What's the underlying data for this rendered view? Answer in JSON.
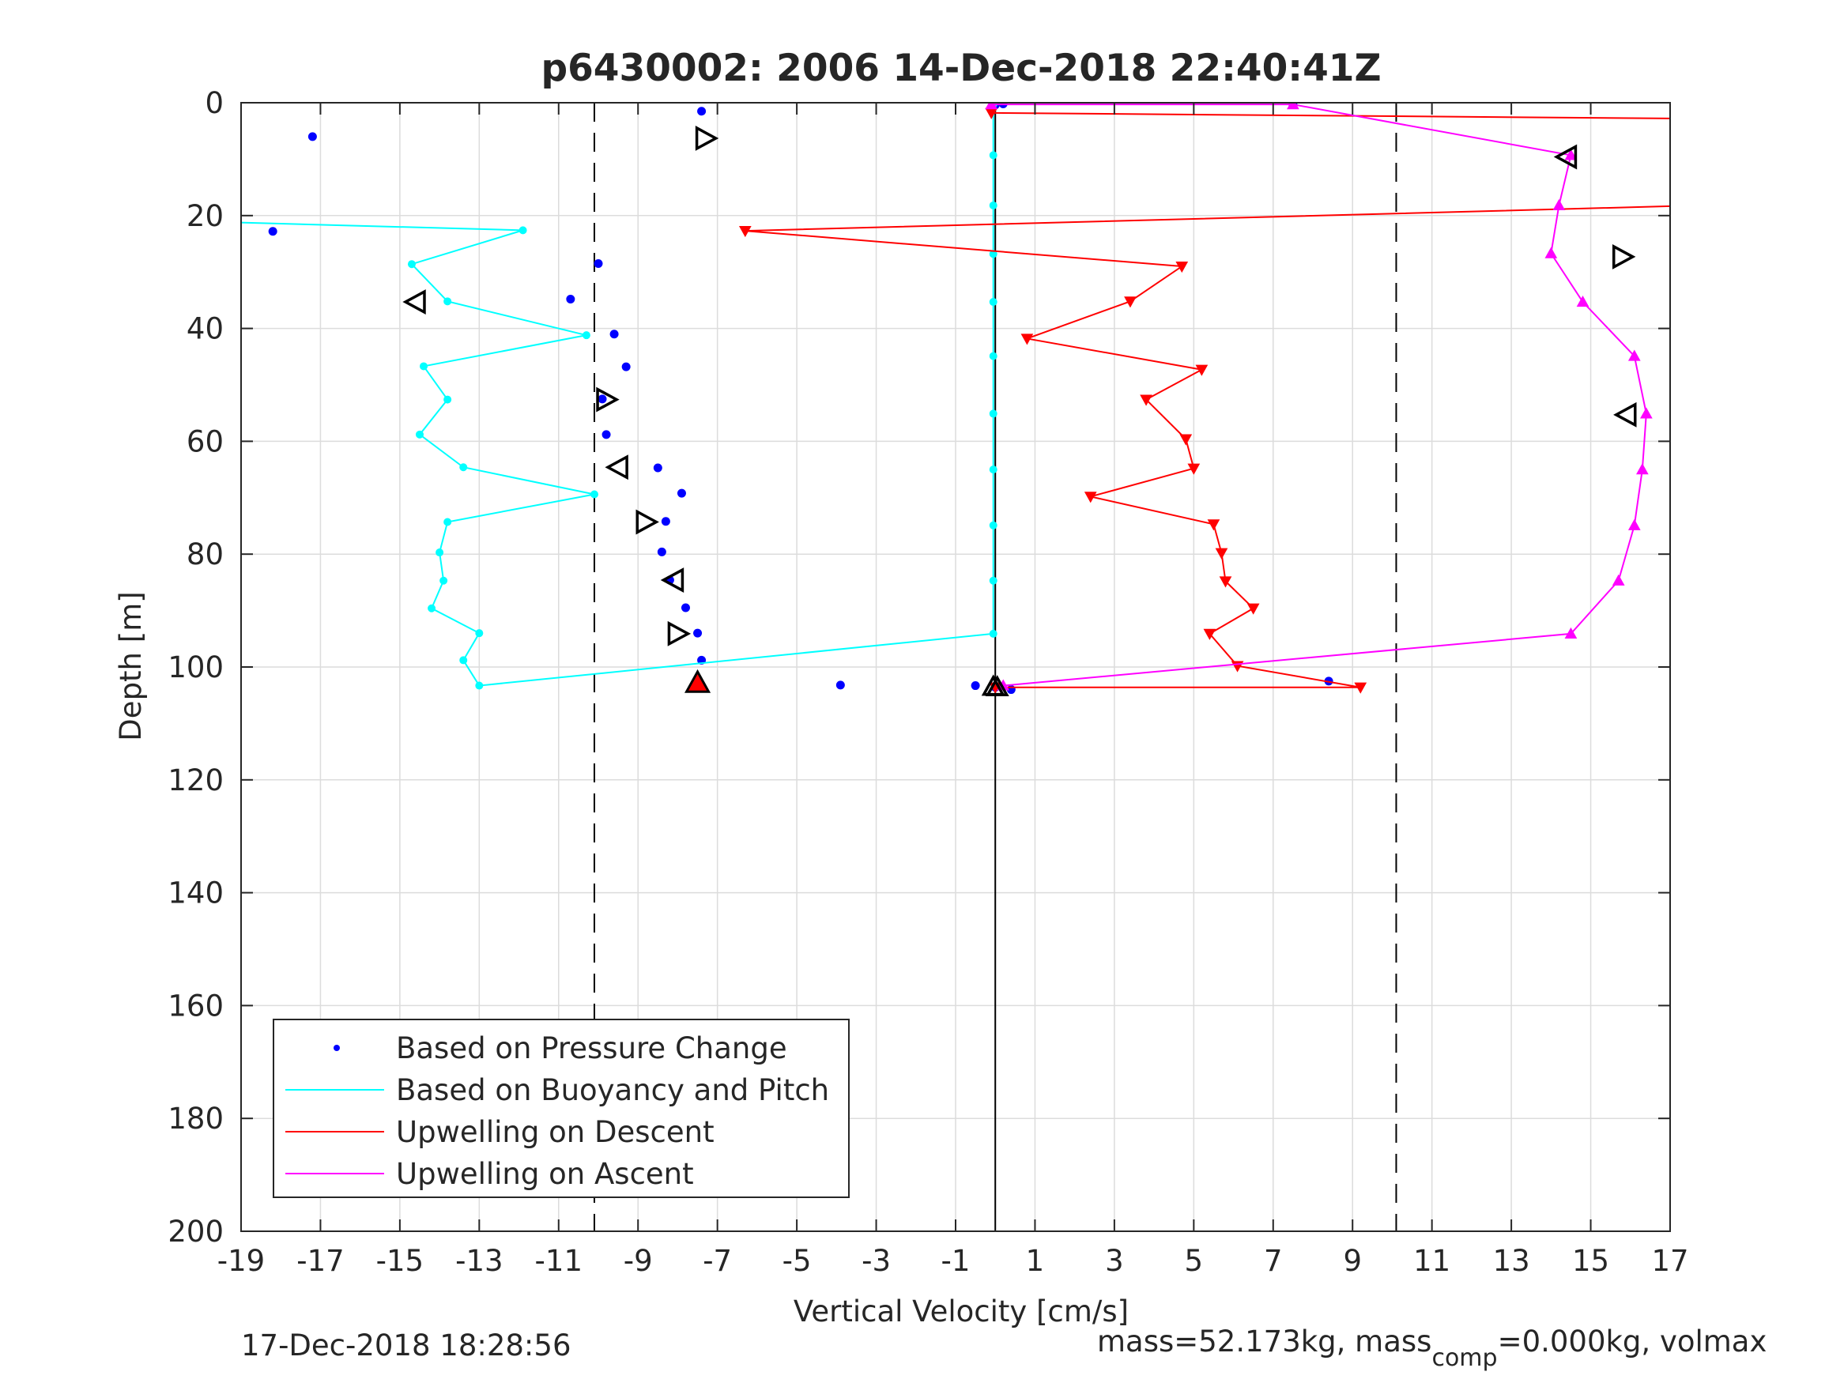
{
  "figure": {
    "title": "p6430002:  2006 14-Dec-2018 22:40:41Z",
    "footer_left": "17-Dec-2018 18:28:56",
    "footer_right_parts": [
      "mass=52.173kg, mass",
      "comp",
      "=0.000kg, volmax"
    ]
  },
  "chart_data": {
    "type": "scatter",
    "title": "p6430002:  2006 14-Dec-2018 22:40:41Z",
    "xlabel": "Vertical Velocity [cm/s]",
    "ylabel": "Depth [m]",
    "xlim": [
      -19,
      17
    ],
    "ylim": [
      0,
      200
    ],
    "y_reversed": true,
    "grid": true,
    "xticks": [
      -19,
      -17,
      -15,
      -13,
      -11,
      -9,
      -7,
      -5,
      -3,
      -1,
      1,
      3,
      5,
      7,
      9,
      11,
      13,
      15,
      17
    ],
    "xtick_labels": [
      "-19",
      "-17",
      "-15",
      "-13",
      "-11",
      "-9",
      "-7",
      "-5",
      "-3",
      "-1",
      "1",
      "3",
      "5",
      "7",
      "9",
      "11",
      "13",
      "15",
      "17"
    ],
    "yticks": [
      0,
      20,
      40,
      60,
      80,
      100,
      120,
      140,
      160,
      180,
      200
    ],
    "ytick_labels": [
      "0",
      "20",
      "40",
      "60",
      "80",
      "100",
      "120",
      "140",
      "160",
      "180",
      "200"
    ],
    "legend_position": "bottom-left",
    "legend": [
      {
        "label": "Based on Pressure Change",
        "color": "#0000ff",
        "style": "dot"
      },
      {
        "label": "Based on Buoyancy and Pitch",
        "color": "#00ffff",
        "style": "line"
      },
      {
        "label": "Upwelling on Descent",
        "color": "#ff0000",
        "style": "line"
      },
      {
        "label": "Upwelling on Ascent",
        "color": "#ff00ff",
        "style": "line"
      }
    ],
    "reference_lines": {
      "solid_vertical_x": 0,
      "dashed_vertical_x": [
        -10.1,
        10.1
      ]
    },
    "series": [
      {
        "name": "Based on Pressure Change",
        "color": "#0000ff",
        "marker": "dot",
        "points": [
          [
            -7.4,
            1.5
          ],
          [
            7.5,
            0.3
          ],
          [
            0.2,
            0.2
          ],
          [
            0,
            0.4
          ],
          [
            -17.2,
            6
          ],
          [
            -18.2,
            22.8
          ],
          [
            -10,
            28.5
          ],
          [
            -10.7,
            34.8
          ],
          [
            -9.6,
            41
          ],
          [
            -9.3,
            46.8
          ],
          [
            -9.9,
            52.5
          ],
          [
            -9.8,
            58.8
          ],
          [
            -8.5,
            64.7
          ],
          [
            -7.9,
            69.2
          ],
          [
            -8.3,
            74.2
          ],
          [
            -8.4,
            79.6
          ],
          [
            -8.2,
            84.6
          ],
          [
            -7.8,
            89.5
          ],
          [
            -7.5,
            94
          ],
          [
            -7.4,
            98.8
          ],
          [
            -3.9,
            103.2
          ],
          [
            -0.5,
            103.3
          ],
          [
            0.4,
            104
          ],
          [
            8.4,
            102.5
          ],
          [
            0,
            103.6
          ]
        ]
      },
      {
        "name": "Based on Buoyancy and Pitch",
        "color": "#00ffff",
        "marker": "circle",
        "points": [
          [
            -0.05,
            0.3
          ],
          [
            -0.05,
            9.3
          ],
          [
            -0.05,
            18.2
          ],
          [
            -0.05,
            26.8
          ],
          [
            -0.05,
            35.3
          ],
          [
            -0.05,
            44.9
          ],
          [
            -0.05,
            55.1
          ],
          [
            -0.05,
            65
          ],
          [
            -0.05,
            74.9
          ],
          [
            -0.05,
            84.7
          ],
          [
            -0.05,
            94.1
          ],
          [
            -13,
            103.3
          ],
          [
            -13.4,
            98.8
          ],
          [
            -13,
            94
          ],
          [
            -14.2,
            89.6
          ],
          [
            -13.9,
            84.7
          ],
          [
            -14,
            79.7
          ],
          [
            -13.8,
            74.3
          ],
          [
            -10.1,
            69.4
          ],
          [
            -13.4,
            64.6
          ],
          [
            -14.5,
            58.8
          ],
          [
            -13.8,
            52.6
          ],
          [
            -14.4,
            46.7
          ],
          [
            -10.3,
            41.2
          ],
          [
            -13.8,
            35.2
          ],
          [
            -14.7,
            28.6
          ],
          [
            -11.9,
            22.6
          ],
          [
            -19.2,
            21.2
          ]
        ]
      },
      {
        "name": "Upwelling on Descent",
        "color": "#ff0000",
        "marker": "triangle-down",
        "points": [
          [
            -0.1,
            1.8
          ],
          [
            17.2,
            2.8
          ],
          [
            17.2,
            18.3
          ],
          [
            -6.3,
            22.7
          ],
          [
            4.7,
            29
          ],
          [
            3.4,
            35.2
          ],
          [
            0.8,
            41.8
          ],
          [
            5.2,
            47.3
          ],
          [
            3.8,
            52.6
          ],
          [
            4.8,
            59.6
          ],
          [
            5,
            64.8
          ],
          [
            2.4,
            69.8
          ],
          [
            5.5,
            74.7
          ],
          [
            5.7,
            79.8
          ],
          [
            5.8,
            84.8
          ],
          [
            6.5,
            89.6
          ],
          [
            5.4,
            94.1
          ],
          [
            6.1,
            99.8
          ],
          [
            9.2,
            103.6
          ],
          [
            0,
            103.6
          ]
        ]
      },
      {
        "name": "Upwelling on Ascent",
        "color": "#ff00ff",
        "marker": "triangle-up",
        "points": [
          [
            -0.1,
            0.3
          ],
          [
            7.5,
            0.3
          ],
          [
            14.5,
            9.3
          ],
          [
            14.2,
            18.2
          ],
          [
            14,
            26.7
          ],
          [
            14.8,
            35.3
          ],
          [
            16.1,
            44.9
          ],
          [
            16.4,
            55.1
          ],
          [
            16.3,
            65
          ],
          [
            16.1,
            74.9
          ],
          [
            15.7,
            84.7
          ],
          [
            14.5,
            94.1
          ],
          [
            0.2,
            103.3
          ]
        ]
      }
    ],
    "annotations": [
      {
        "type": "triangle-right",
        "x": -7.3,
        "y": 6.3
      },
      {
        "type": "triangle-left",
        "x": -14.6,
        "y": 35.3
      },
      {
        "type": "triangle-right",
        "x": -9.8,
        "y": 52.6
      },
      {
        "type": "triangle-left",
        "x": -9.5,
        "y": 64.6
      },
      {
        "type": "triangle-right",
        "x": -8.8,
        "y": 74.3
      },
      {
        "type": "triangle-left",
        "x": -8.1,
        "y": 84.6
      },
      {
        "type": "triangle-right",
        "x": -8.0,
        "y": 94.1
      },
      {
        "type": "triangle-left",
        "x": 14.4,
        "y": 9.6
      },
      {
        "type": "triangle-right",
        "x": 15.8,
        "y": 27.3
      },
      {
        "type": "triangle-left",
        "x": 15.9,
        "y": 55.3
      },
      {
        "type": "triangle-up-red",
        "x": -7.5,
        "y": 102.8
      },
      {
        "type": "triangle-up-black",
        "x": -0.05,
        "y": 103.5
      },
      {
        "type": "triangle-up-black",
        "x": 0.05,
        "y": 103.6
      }
    ]
  }
}
